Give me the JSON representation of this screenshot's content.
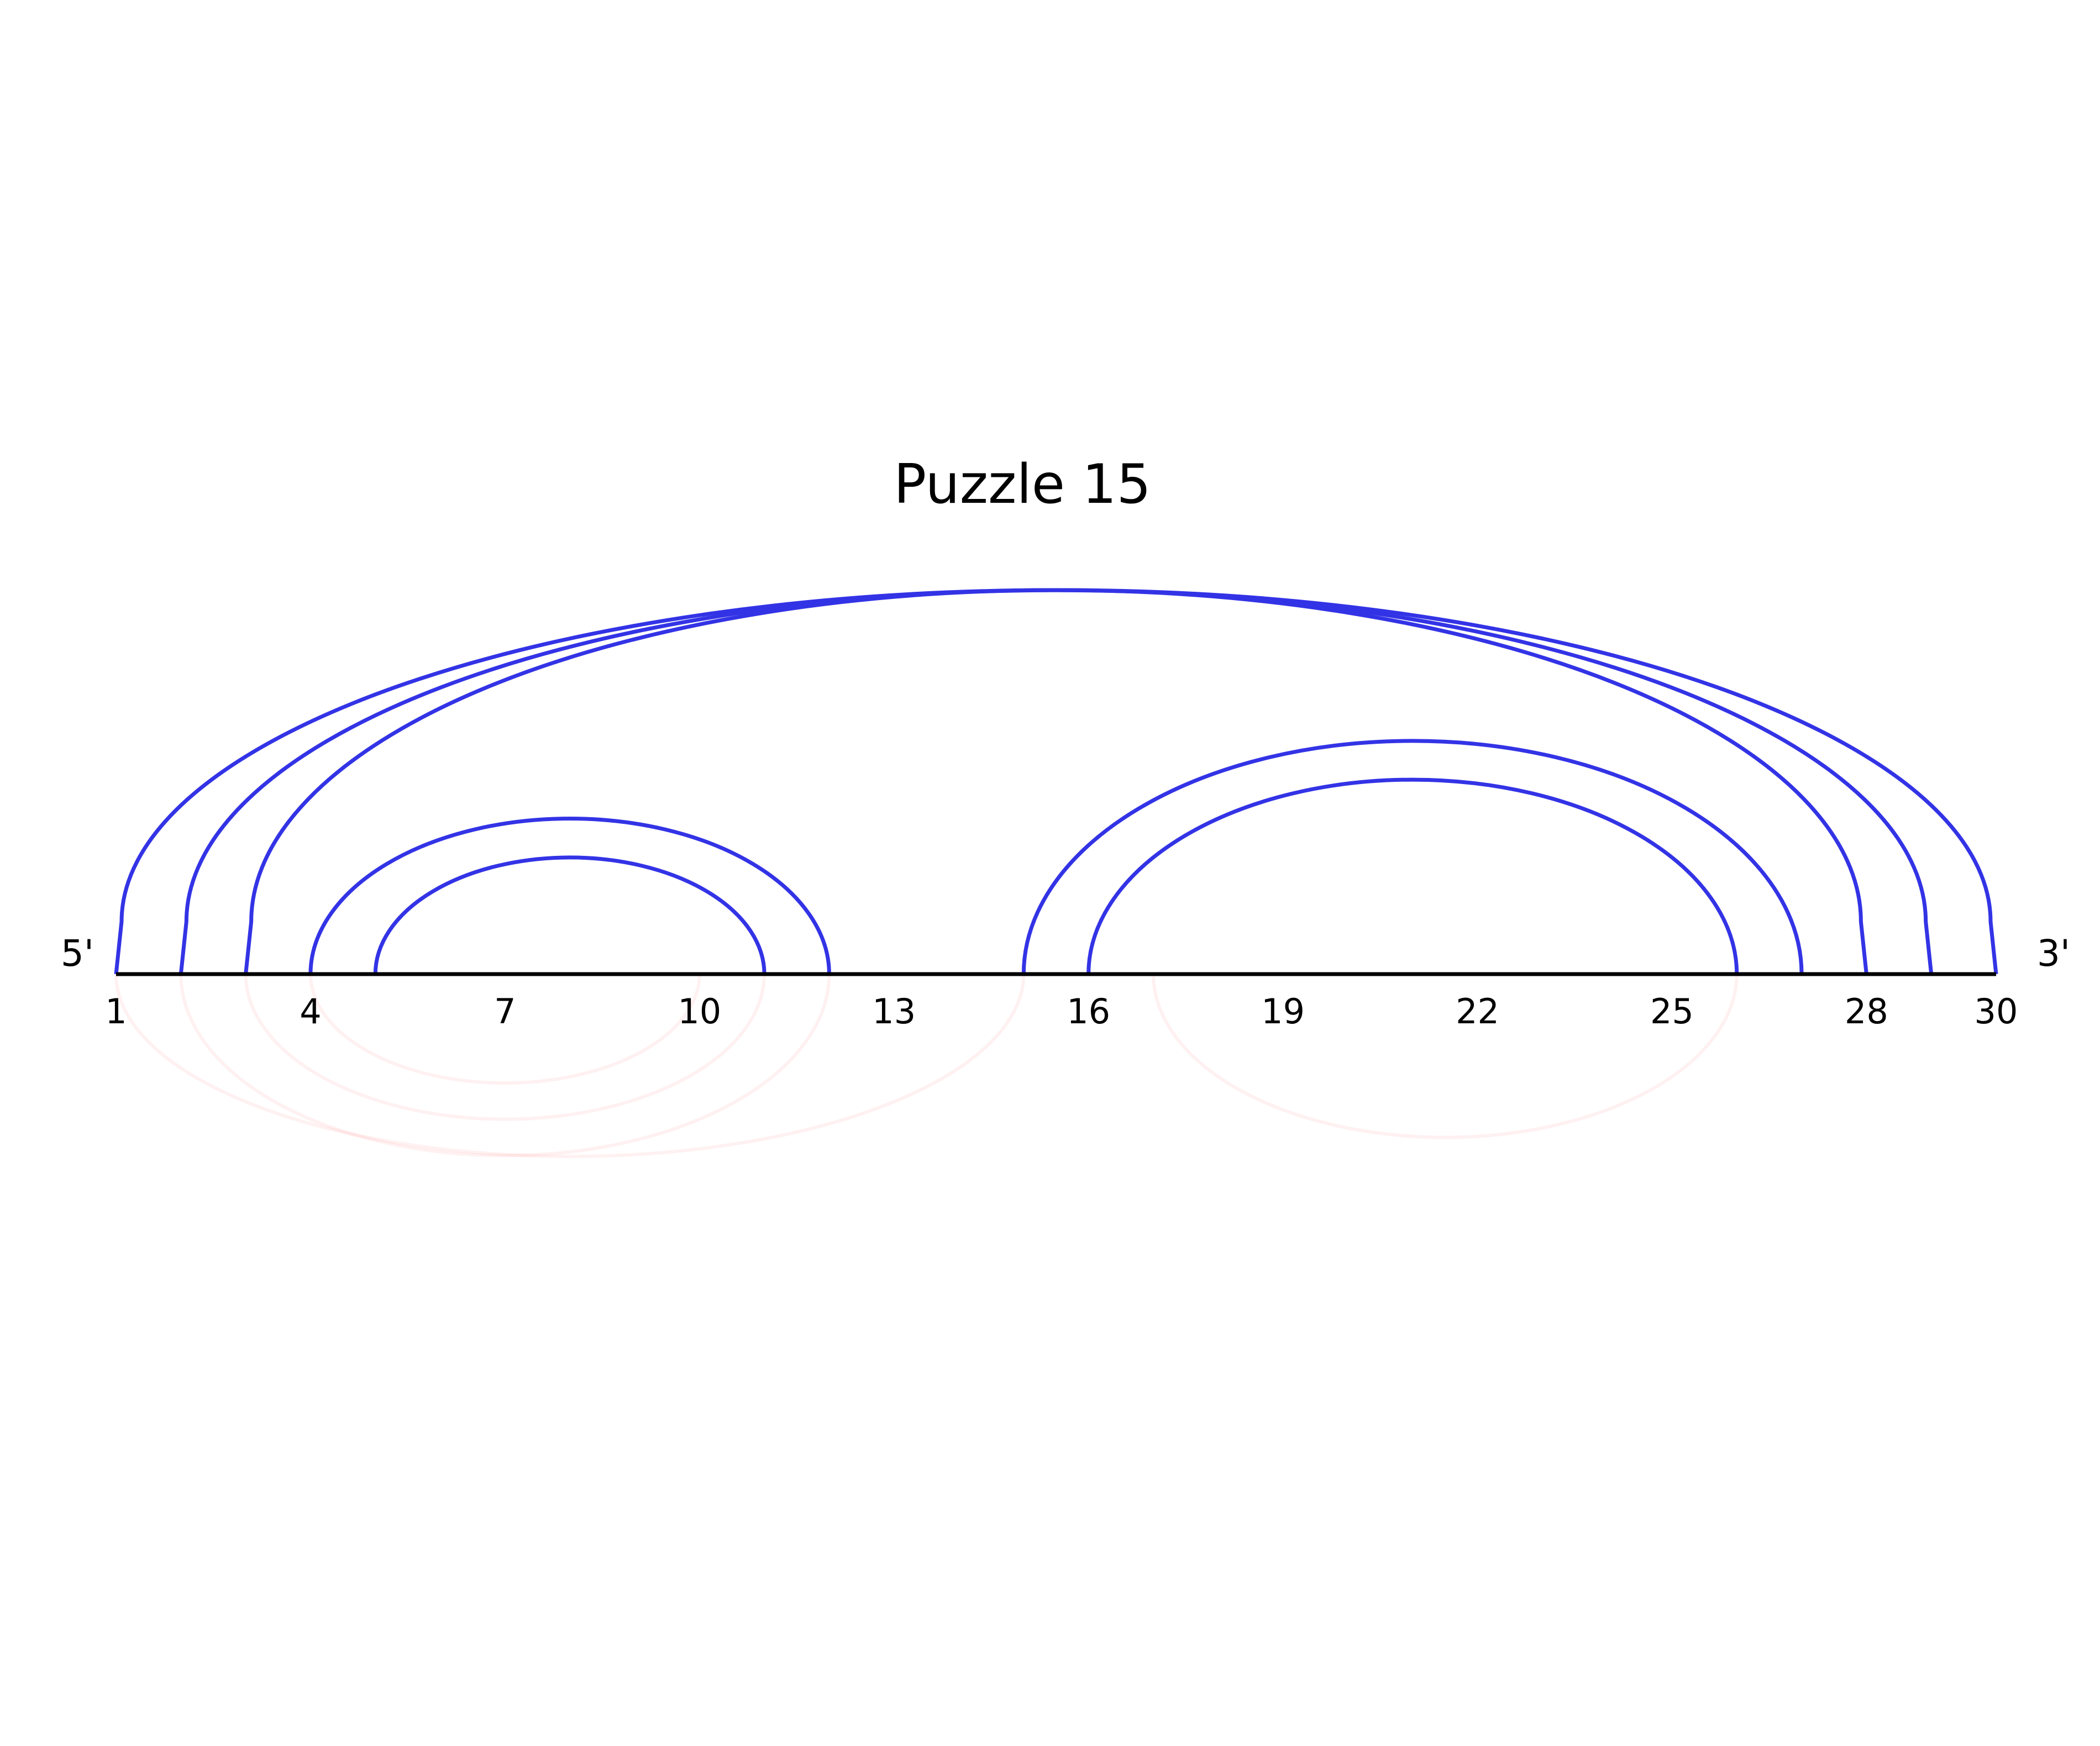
{
  "title": "Puzzle 15",
  "five_prime_label": "5'",
  "three_prime_label": "3'",
  "sequence_length": 30,
  "position_labels": [
    "1",
    "4",
    "7",
    "10",
    "13",
    "16",
    "19",
    "22",
    "25",
    "28",
    "30"
  ],
  "colors": {
    "pair_arc": "#3333e6",
    "alt_arc": "#ff6666",
    "backbone": "#000000"
  },
  "base_pairs": [
    {
      "i": 1,
      "j": 30
    },
    {
      "i": 2,
      "j": 29
    },
    {
      "i": 3,
      "j": 28
    },
    {
      "i": 4,
      "j": 12
    },
    {
      "i": 5,
      "j": 11
    },
    {
      "i": 15,
      "j": 27
    },
    {
      "i": 16,
      "j": 26
    }
  ],
  "alternative_pairs": [
    {
      "i": 1,
      "j": 15
    },
    {
      "i": 2,
      "j": 12
    },
    {
      "i": 3,
      "j": 11
    },
    {
      "i": 4,
      "j": 10
    },
    {
      "i": 17,
      "j": 26
    }
  ]
}
